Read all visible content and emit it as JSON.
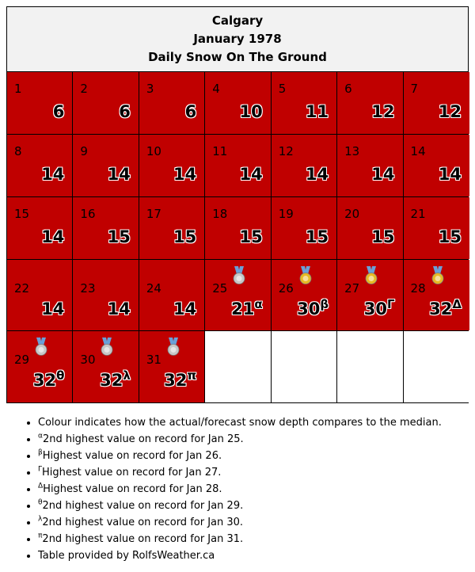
{
  "header": {
    "city": "Calgary",
    "month": "January 1978",
    "subtitle": "Daily Snow On The Ground"
  },
  "colors": {
    "above_median": "#c00000",
    "empty": "#ffffff",
    "header_bg": "#f2f2f2",
    "medal_gold": "#e8b923",
    "medal_silver": "#c8c8c8",
    "ribbon": "#6aa0d8"
  },
  "chart_data": {
    "type": "table",
    "title": "Calgary January 1978 Daily Snow On The Ground",
    "unit": "cm",
    "weeks": [
      [
        {
          "day": "1",
          "value": "6"
        },
        {
          "day": "2",
          "value": "6"
        },
        {
          "day": "3",
          "value": "6"
        },
        {
          "day": "4",
          "value": "10"
        },
        {
          "day": "5",
          "value": "11"
        },
        {
          "day": "6",
          "value": "12"
        },
        {
          "day": "7",
          "value": "12"
        }
      ],
      [
        {
          "day": "8",
          "value": "14"
        },
        {
          "day": "9",
          "value": "14"
        },
        {
          "day": "10",
          "value": "14"
        },
        {
          "day": "11",
          "value": "14"
        },
        {
          "day": "12",
          "value": "14"
        },
        {
          "day": "13",
          "value": "14"
        },
        {
          "day": "14",
          "value": "14"
        }
      ],
      [
        {
          "day": "15",
          "value": "14"
        },
        {
          "day": "16",
          "value": "15"
        },
        {
          "day": "17",
          "value": "15"
        },
        {
          "day": "18",
          "value": "15"
        },
        {
          "day": "19",
          "value": "15"
        },
        {
          "day": "20",
          "value": "15"
        },
        {
          "day": "21",
          "value": "15"
        }
      ],
      [
        {
          "day": "22",
          "value": "14"
        },
        {
          "day": "23",
          "value": "14"
        },
        {
          "day": "24",
          "value": "14"
        },
        {
          "day": "25",
          "value": "21",
          "mark": "α",
          "medal": "silver"
        },
        {
          "day": "26",
          "value": "30",
          "mark": "β",
          "medal": "gold"
        },
        {
          "day": "27",
          "value": "30",
          "mark": "Γ",
          "medal": "gold"
        },
        {
          "day": "28",
          "value": "32",
          "mark": "Δ",
          "medal": "gold"
        }
      ],
      [
        {
          "day": "29",
          "value": "32",
          "mark": "θ",
          "medal": "silver"
        },
        {
          "day": "30",
          "value": "32",
          "mark": "λ",
          "medal": "silver"
        },
        {
          "day": "31",
          "value": "32",
          "mark": "π",
          "medal": "silver"
        },
        null,
        null,
        null,
        null
      ]
    ]
  },
  "notes": [
    {
      "mark": "",
      "text": "Colour indicates how the actual/forecast snow depth compares to the median."
    },
    {
      "mark": "α",
      "text": "2nd highest value on record for Jan 25."
    },
    {
      "mark": "β",
      "text": "Highest value on record for Jan 26."
    },
    {
      "mark": "Γ",
      "text": "Highest value on record for Jan 27."
    },
    {
      "mark": "Δ",
      "text": "Highest value on record for Jan 28."
    },
    {
      "mark": "θ",
      "text": "2nd highest value on record for Jan 29."
    },
    {
      "mark": "λ",
      "text": "2nd highest value on record for Jan 30."
    },
    {
      "mark": "π",
      "text": "2nd highest value on record for Jan 31."
    },
    {
      "mark": "",
      "text": "Table provided by RolfsWeather.ca"
    }
  ]
}
